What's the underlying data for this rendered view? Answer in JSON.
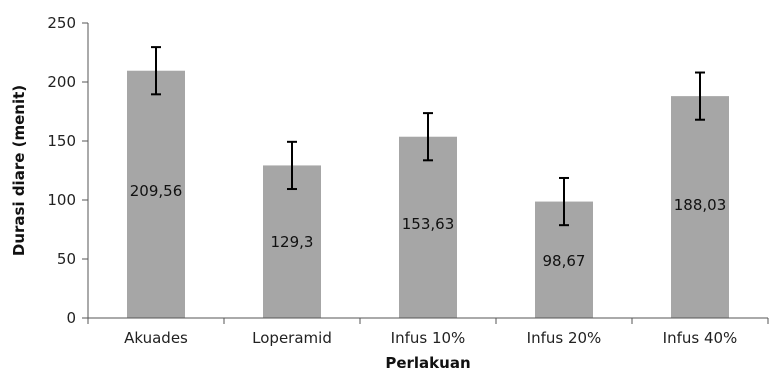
{
  "chart_data": {
    "type": "bar",
    "title": "",
    "xlabel": "Perlakuan",
    "ylabel": "Durasi diare (menit)",
    "categories": [
      "Akuades",
      "Loperamid",
      "Infus 10%",
      "Infus 20%",
      "Infus 40%"
    ],
    "values": [
      209.56,
      129.3,
      153.63,
      98.67,
      188.03
    ],
    "value_labels": [
      "209,56",
      "129,3",
      "153,63",
      "98,67",
      "188,03"
    ],
    "error": [
      20,
      20,
      20,
      20,
      20
    ],
    "ylim": [
      0,
      250
    ],
    "yticks": [
      0,
      50,
      100,
      150,
      200,
      250
    ],
    "grid": false,
    "legend": "none",
    "colors": {
      "bar": "#a6a6a6",
      "axis": "#555555",
      "error_bar": "#000000"
    }
  }
}
